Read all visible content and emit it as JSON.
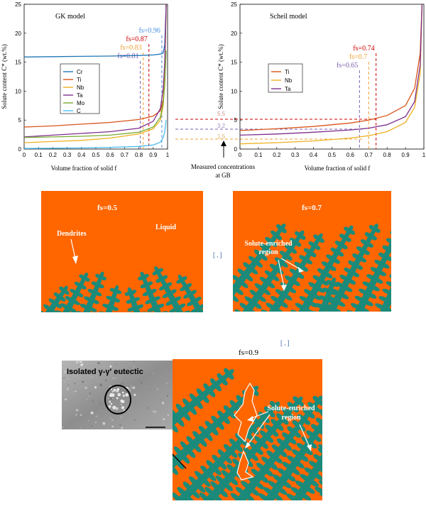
{
  "chart_data": [
    {
      "type": "line",
      "title": "GK model",
      "xlabel": "Volume fraction of solid f",
      "ylabel": "Solute content C* (wt.%)",
      "xlim": [
        0,
        1
      ],
      "ylim": [
        0,
        25
      ],
      "xticks": [
        "0",
        "0.1",
        "0.2",
        "0.3",
        "0.4",
        "0.5",
        "0.6",
        "0.7",
        "0.8",
        "0.9",
        "1"
      ],
      "yticks": [
        "0",
        "5",
        "10",
        "15",
        "20",
        "25"
      ],
      "legend_position": "left",
      "series": [
        {
          "name": "Cr",
          "color": "#1f77b4",
          "x": [
            0,
            0.2,
            0.4,
            0.6,
            0.8,
            0.9,
            0.95,
            0.97,
            0.98,
            0.99
          ],
          "y": [
            15.9,
            15.95,
            16.0,
            16.05,
            16.15,
            16.25,
            16.4,
            16.6,
            18.0,
            25
          ]
        },
        {
          "name": "Ti",
          "color": "#d95319",
          "x": [
            0,
            0.2,
            0.4,
            0.6,
            0.8,
            0.9,
            0.95,
            0.97,
            0.98,
            0.99
          ],
          "y": [
            3.8,
            4.0,
            4.3,
            4.6,
            5.1,
            5.7,
            6.6,
            8.5,
            12.5,
            25
          ]
        },
        {
          "name": "Nb",
          "color": "#edb120",
          "x": [
            0,
            0.2,
            0.4,
            0.6,
            0.8,
            0.9,
            0.95,
            0.97,
            0.98,
            0.99
          ],
          "y": [
            1.1,
            1.3,
            1.5,
            1.9,
            2.6,
            3.5,
            5.0,
            7.5,
            12.0,
            25
          ]
        },
        {
          "name": "Ta",
          "color": "#7e2f8e",
          "x": [
            0,
            0.2,
            0.4,
            0.6,
            0.8,
            0.9,
            0.95,
            0.97,
            0.98,
            0.99
          ],
          "y": [
            2.1,
            2.4,
            2.7,
            3.0,
            3.6,
            4.8,
            7.0,
            10.5,
            15.0,
            25
          ]
        },
        {
          "name": "Mo",
          "color": "#77ac30",
          "x": [
            0,
            0.2,
            0.4,
            0.6,
            0.8,
            0.9,
            0.95,
            0.97,
            0.98,
            0.99
          ],
          "y": [
            2.0,
            2.1,
            2.2,
            2.4,
            2.9,
            3.8,
            5.5,
            8.0,
            11.0,
            17.0
          ]
        },
        {
          "name": "C",
          "color": "#4dbeee",
          "x": [
            0,
            0.2,
            0.4,
            0.6,
            0.8,
            0.9,
            0.95,
            0.97,
            0.98,
            0.99
          ],
          "y": [
            0.1,
            0.15,
            0.2,
            0.3,
            0.45,
            0.7,
            1.2,
            2.0,
            3.0,
            5.0
          ]
        }
      ],
      "markers": [
        {
          "label": "fs=0.96",
          "x": 0.96,
          "color": "#4a90e2"
        },
        {
          "label": "fs=0.87",
          "x": 0.87,
          "color": "#cc0000"
        },
        {
          "label": "fs=0.83",
          "x": 0.83,
          "color": "#f0a030"
        },
        {
          "label": "fs=0.81",
          "x": 0.81,
          "color": "#7a5fb0"
        }
      ]
    },
    {
      "type": "line",
      "title": "Scheil model",
      "xlabel": "Volume fraction of solid f",
      "ylabel": "Solute content C* (wt.%)",
      "xlim": [
        0,
        1
      ],
      "ylim": [
        0,
        25
      ],
      "xticks": [
        "0",
        "0.1",
        "0.2",
        "0.3",
        "0.4",
        "0.5",
        "0.6",
        "0.7",
        "0.8",
        "0.9",
        "1"
      ],
      "yticks": [
        "0",
        "5",
        "10",
        "15",
        "20",
        "25"
      ],
      "legend_position": "top-left",
      "series": [
        {
          "name": "Ti",
          "color": "#d95319",
          "x": [
            0,
            0.2,
            0.4,
            0.6,
            0.7,
            0.8,
            0.9,
            0.95,
            0.98,
            0.99
          ],
          "y": [
            3.2,
            3.5,
            3.9,
            4.5,
            5.0,
            5.8,
            7.5,
            10.5,
            16.5,
            25
          ]
        },
        {
          "name": "Nb",
          "color": "#edb120",
          "x": [
            0,
            0.2,
            0.4,
            0.6,
            0.7,
            0.8,
            0.9,
            0.95,
            0.98,
            0.99
          ],
          "y": [
            0.9,
            1.1,
            1.4,
            1.9,
            2.3,
            3.0,
            4.6,
            7.2,
            13.0,
            25
          ]
        },
        {
          "name": "Ta",
          "color": "#7e2f8e",
          "x": [
            0,
            0.2,
            0.4,
            0.6,
            0.7,
            0.8,
            0.9,
            0.95,
            0.98,
            0.99
          ],
          "y": [
            2.4,
            2.6,
            2.9,
            3.3,
            3.6,
            4.2,
            5.6,
            8.2,
            14.5,
            25
          ]
        }
      ],
      "markers": [
        {
          "label": "fs=0.74",
          "x": 0.74,
          "color": "#cc0000"
        },
        {
          "label": "fs=0.7",
          "x": 0.7,
          "color": "#f0a030"
        },
        {
          "label": "fs=0.65",
          "x": 0.65,
          "color": "#7a5fb0"
        }
      ]
    }
  ],
  "annotations": {
    "measured_line1": "Measured concentrations",
    "measured_line2": "at GB",
    "gb_values": [
      "5.5",
      "3.2",
      "1.5"
    ]
  },
  "panels": {
    "left": {
      "fs_label": "fs=0.5",
      "dendrites": "Dendrites",
      "liquid": "Liquid"
    },
    "right": {
      "fs_label": "fs=0.7",
      "region_line1": "Solute-enriched",
      "region_line2": "region"
    },
    "bottom": {
      "fs_label": "fs=0.9",
      "eutectic": "Isolated γ-γ′ eutectic",
      "region_line1": "Solute-enriched",
      "region_line2": "region"
    }
  },
  "colors": {
    "liquid": "#ff6600",
    "dendrite": "#1b8a7a",
    "micrograph": "#9a9a9a"
  }
}
